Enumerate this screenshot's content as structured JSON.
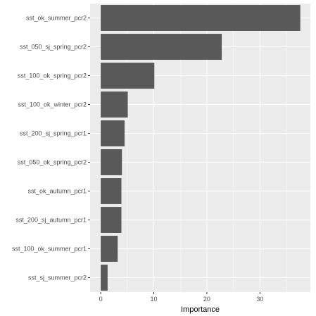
{
  "chart_data": {
    "type": "bar",
    "orientation": "horizontal",
    "title": "",
    "xlabel": "Importance",
    "ylabel": "",
    "xlim": [
      -2,
      39.5
    ],
    "xticks": [
      0,
      10,
      20,
      30
    ],
    "grid": true,
    "categories": [
      "sst_ok_summer_pcr2",
      "sst_050_sj_spring_pcr2",
      "sst_100_ok_spring_pcr2",
      "sst_100_ok_winter_pcr2",
      "sst_200_sj_spring_pcr1",
      "sst_050_ok_spring_pcr2",
      "sst_ok_autumn_pcr1",
      "sst_200_sj_autumn_pcr1",
      "sst_100_ok_summer_pcr1",
      "sst_sj_summer_pcr2"
    ],
    "values": [
      37.6,
      22.8,
      10.1,
      5.1,
      4.5,
      4.0,
      3.9,
      3.9,
      3.2,
      1.3
    ]
  },
  "colors": {
    "panel_background": "#ebebeb",
    "grid_major": "#ffffff",
    "bar_fill": "#595959",
    "tick_text": "#4d4d4d",
    "tick_mark": "#333333"
  }
}
